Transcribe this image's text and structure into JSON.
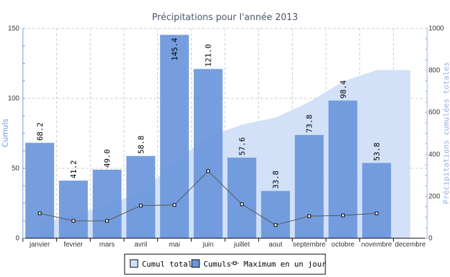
{
  "chart_data": {
    "type": "bar",
    "title": "Précipitations pour l'année 2013",
    "ylabel": "Cumuls",
    "y2label": "Précipitations cumulées totales",
    "ylim": [
      0,
      150
    ],
    "y2lim": [
      0,
      1000
    ],
    "yticks": [
      0,
      50,
      100,
      150
    ],
    "y2ticks": [
      0,
      200,
      400,
      600,
      800,
      1000
    ],
    "grid": true,
    "legend_position": "bottom",
    "categories": [
      "janvier",
      "fevrier",
      "mars",
      "avril",
      "mai",
      "juin",
      "juillet",
      "aout",
      "septembre",
      "octobre",
      "novembre",
      "decembre"
    ],
    "series": [
      {
        "name": "Cumul total",
        "type": "area",
        "axis": "right",
        "color": "#d0dff8",
        "values": [
          68.2,
          109.4,
          158.4,
          217.2,
          362.6,
          483.6,
          541.2,
          575.0,
          648.8,
          747.2,
          801.0,
          801.0
        ]
      },
      {
        "name": "Cumuls",
        "type": "bar",
        "axis": "left",
        "color": "#6a96dc",
        "values": [
          68.2,
          41.2,
          49.0,
          58.8,
          145.4,
          121.0,
          57.6,
          33.8,
          73.8,
          98.4,
          53.8,
          null
        ],
        "labels": [
          "68.2",
          "41.2",
          "49.0",
          "58.8",
          "145.4",
          "121.0",
          "57.6",
          "33.8",
          "73.8",
          "98.4",
          "53.8",
          ""
        ]
      },
      {
        "name": "Maximum en un jour",
        "type": "line",
        "axis": "left",
        "color": "#555555",
        "values": [
          17.8,
          12.4,
          12.4,
          23.3,
          23.8,
          48.0,
          24.3,
          9.4,
          15.8,
          16.3,
          17.8,
          null
        ]
      }
    ]
  }
}
